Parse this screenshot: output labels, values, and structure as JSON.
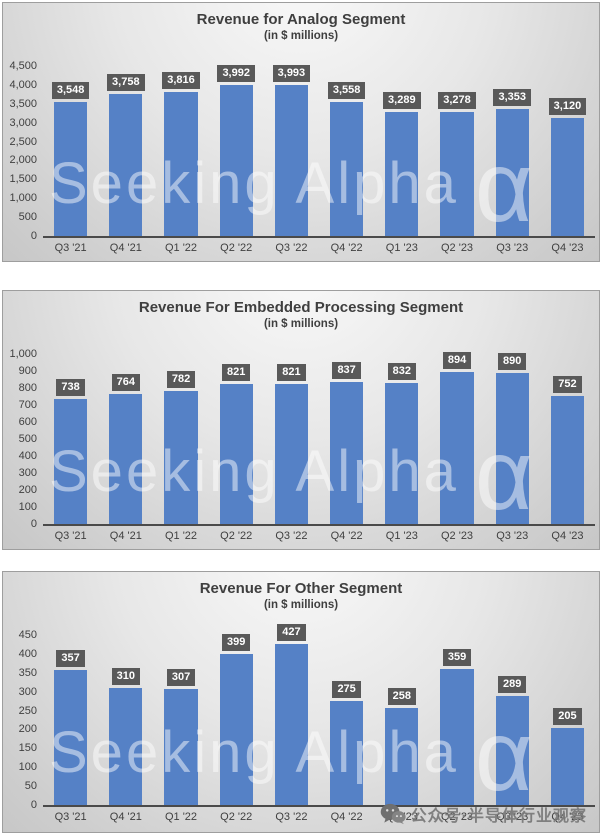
{
  "watermark": {
    "text": "Seeking Alpha",
    "alpha_glyph": "α"
  },
  "footer_watermark": {
    "text": "公众号·半导体行业观察"
  },
  "colors": {
    "bar": "#5581C6",
    "label_bg": "#595959",
    "label_text": "#ffffff",
    "title_text": "#3f3f3f",
    "axis_text": "#3f3f3f",
    "baseline": "#4a4a4a"
  },
  "chart_data": [
    {
      "type": "bar",
      "title": "Revenue for Analog Segment",
      "subtitle": "(in $ millions)",
      "categories": [
        "Q3 '21",
        "Q4 '21",
        "Q1 '22",
        "Q2 '22",
        "Q3 '22",
        "Q4 '22",
        "Q1 '23",
        "Q2 '23",
        "Q3 '23",
        "Q4 '23"
      ],
      "values": [
        3548,
        3758,
        3816,
        3992,
        3993,
        3558,
        3289,
        3278,
        3353,
        3120
      ],
      "value_labels": [
        "3,548",
        "3,758",
        "3,816",
        "3,992",
        "3,993",
        "3,558",
        "3,289",
        "3,278",
        "3,353",
        "3,120"
      ],
      "ylim": [
        0,
        4500
      ],
      "y_ticks": [
        "4,500",
        "4,000",
        "3,500",
        "3,000",
        "2,500",
        "2,000",
        "1,500",
        "1,000",
        "500",
        "0"
      ],
      "grid": false,
      "legend": "none"
    },
    {
      "type": "bar",
      "title": "Revenue For Embedded Processing Segment",
      "subtitle": "(in $ millions)",
      "categories": [
        "Q3 '21",
        "Q4 '21",
        "Q1 '22",
        "Q2 '22",
        "Q3 '22",
        "Q4 '22",
        "Q1 '23",
        "Q2 '23",
        "Q3 '23",
        "Q4 '23"
      ],
      "values": [
        738,
        764,
        782,
        821,
        821,
        837,
        832,
        894,
        890,
        752
      ],
      "value_labels": [
        "738",
        "764",
        "782",
        "821",
        "821",
        "837",
        "832",
        "894",
        "890",
        "752"
      ],
      "ylim": [
        0,
        1000
      ],
      "y_ticks": [
        "1,000",
        "900",
        "800",
        "700",
        "600",
        "500",
        "400",
        "300",
        "200",
        "100",
        "0"
      ],
      "grid": false,
      "legend": "none"
    },
    {
      "type": "bar",
      "title": "Revenue For Other Segment",
      "subtitle": "(in $ millions)",
      "categories": [
        "Q3 '21",
        "Q4 '21",
        "Q1 '22",
        "Q2 '22",
        "Q3 '22",
        "Q4 '22",
        "Q1 '23",
        "Q2 '23",
        "Q3 '23",
        "Q4 '23"
      ],
      "values": [
        357,
        310,
        307,
        399,
        427,
        275,
        258,
        359,
        289,
        205
      ],
      "value_labels": [
        "357",
        "310",
        "307",
        "399",
        "427",
        "275",
        "258",
        "359",
        "289",
        "205"
      ],
      "ylim": [
        0,
        450
      ],
      "y_ticks": [
        "450",
        "400",
        "350",
        "300",
        "250",
        "200",
        "150",
        "100",
        "50",
        "0"
      ],
      "grid": false,
      "legend": "none"
    }
  ]
}
